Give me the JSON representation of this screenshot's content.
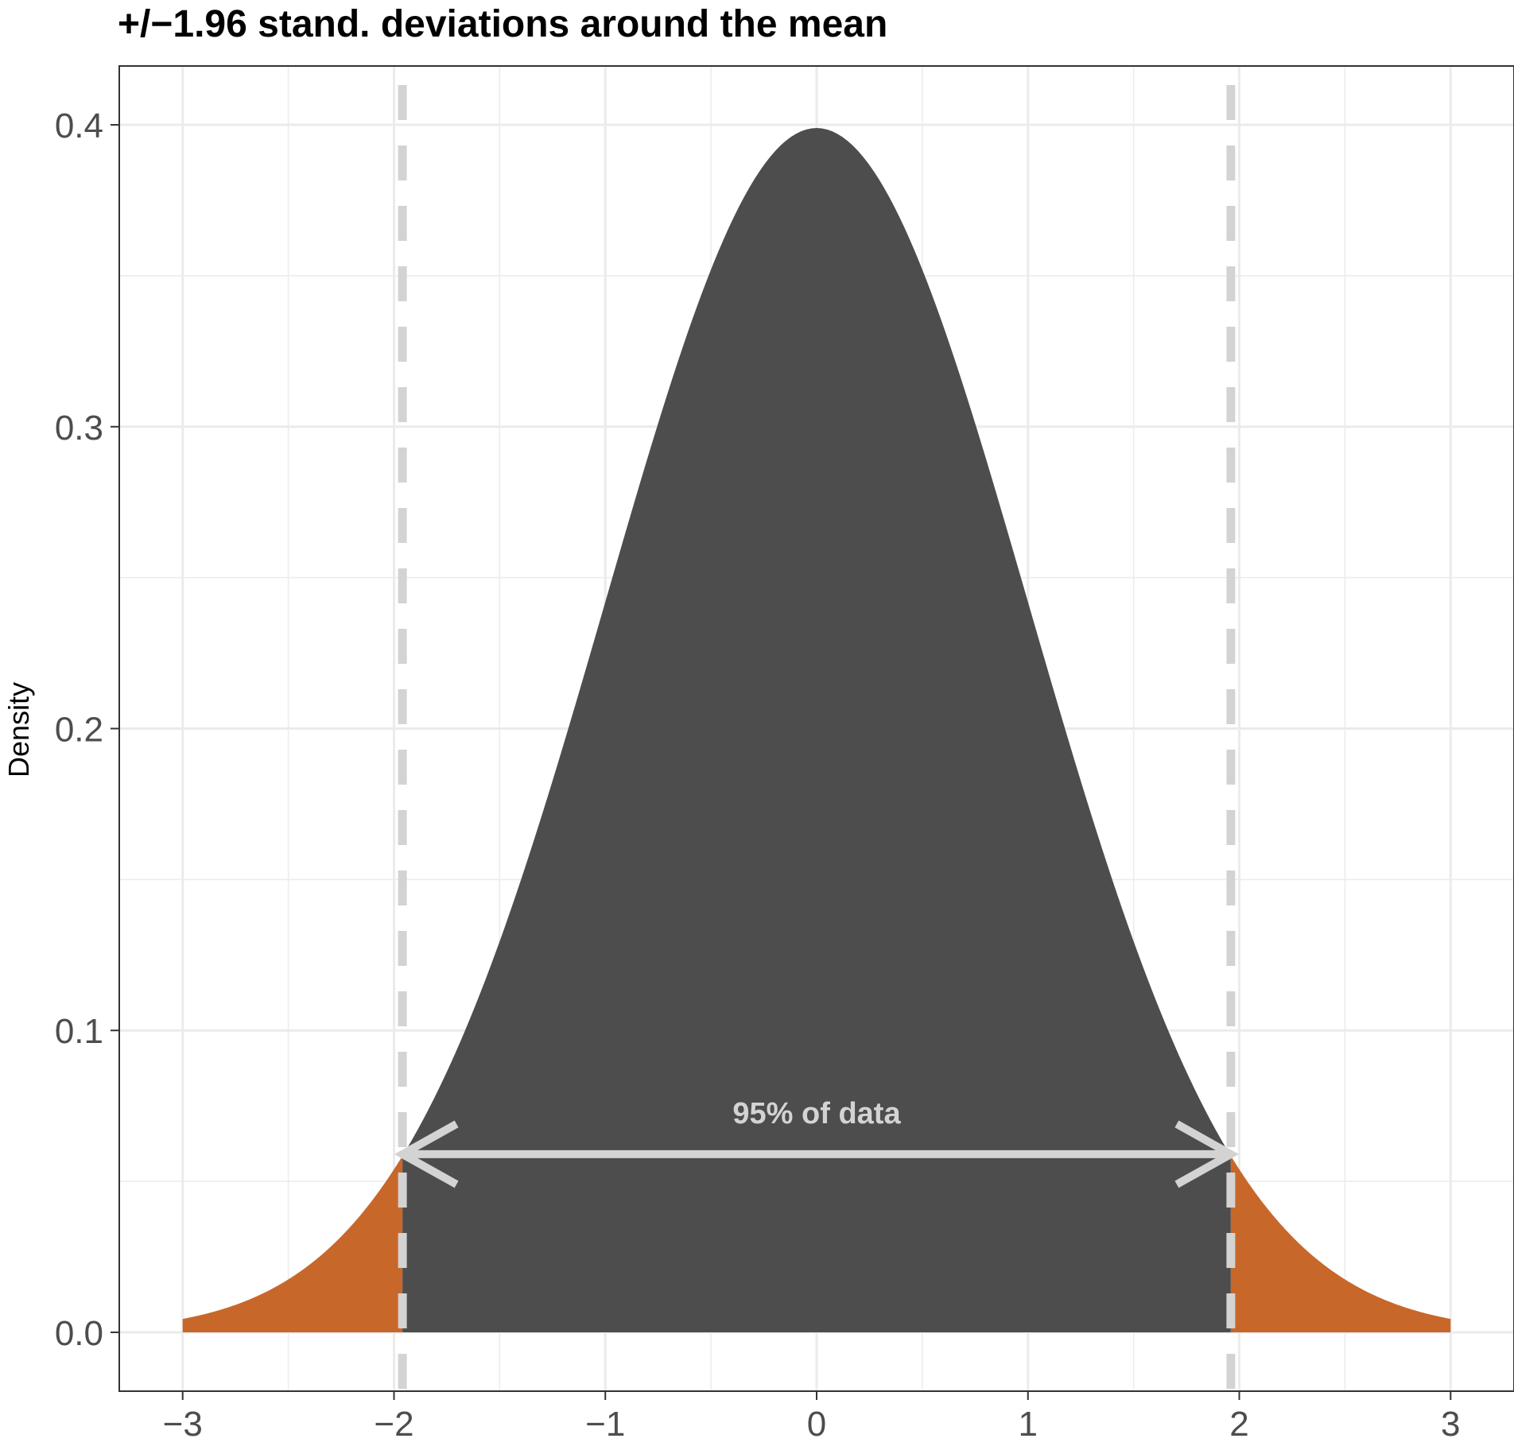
{
  "chart_data": {
    "type": "area",
    "title": "+/−1.96 stand. deviations around the mean",
    "xlabel": "",
    "ylabel": "Density",
    "xlim": [
      -3.3,
      3.3
    ],
    "ylim": [
      -0.0195,
      0.4195
    ],
    "x_ticks": [
      -3,
      -2,
      -1,
      0,
      1,
      2,
      3
    ],
    "x_tick_labels": [
      "−3",
      "−2",
      "−1",
      "0",
      "1",
      "2",
      "3"
    ],
    "y_ticks": [
      0.0,
      0.1,
      0.2,
      0.3,
      0.4
    ],
    "y_tick_labels": [
      "0.0",
      "0.1",
      "0.2",
      "0.3",
      "0.4"
    ],
    "grid": true,
    "distribution": "standard normal density",
    "series": [
      {
        "values": [
          {
            "x": -3.0,
            "y": 0.0044
          },
          {
            "x": -2.5,
            "y": 0.0175
          },
          {
            "x": -1.96,
            "y": 0.0584
          },
          {
            "x": -1.5,
            "y": 0.1295
          },
          {
            "x": -1.0,
            "y": 0.242
          },
          {
            "x": -0.5,
            "y": 0.3521
          },
          {
            "x": 0.0,
            "y": 0.3989
          },
          {
            "x": 0.5,
            "y": 0.3521
          },
          {
            "x": 1.0,
            "y": 0.242
          },
          {
            "x": 1.5,
            "y": 0.1295
          },
          {
            "x": 1.96,
            "y": 0.0584
          },
          {
            "x": 2.5,
            "y": 0.0175
          },
          {
            "x": 3.0,
            "y": 0.0044
          }
        ]
      }
    ],
    "shaded_regions": [
      {
        "from": -3.0,
        "to": -1.96,
        "color": "#c8672a"
      },
      {
        "from": -1.96,
        "to": 1.96,
        "color": "#4d4d4d"
      },
      {
        "from": 1.96,
        "to": 3.0,
        "color": "#c8672a"
      }
    ],
    "vlines": [
      {
        "x": -1.96,
        "style": "dashed",
        "color": "#d3d3d3"
      },
      {
        "x": 1.96,
        "style": "dashed",
        "color": "#d3d3d3"
      }
    ],
    "annotations": [
      {
        "text": "95% of data",
        "x": 0,
        "y": 0.073,
        "color": "#d3d3d3"
      },
      {
        "type": "double-arrow",
        "x_from": -1.96,
        "x_to": 1.96,
        "y": 0.059,
        "color": "#d3d3d3"
      }
    ]
  }
}
